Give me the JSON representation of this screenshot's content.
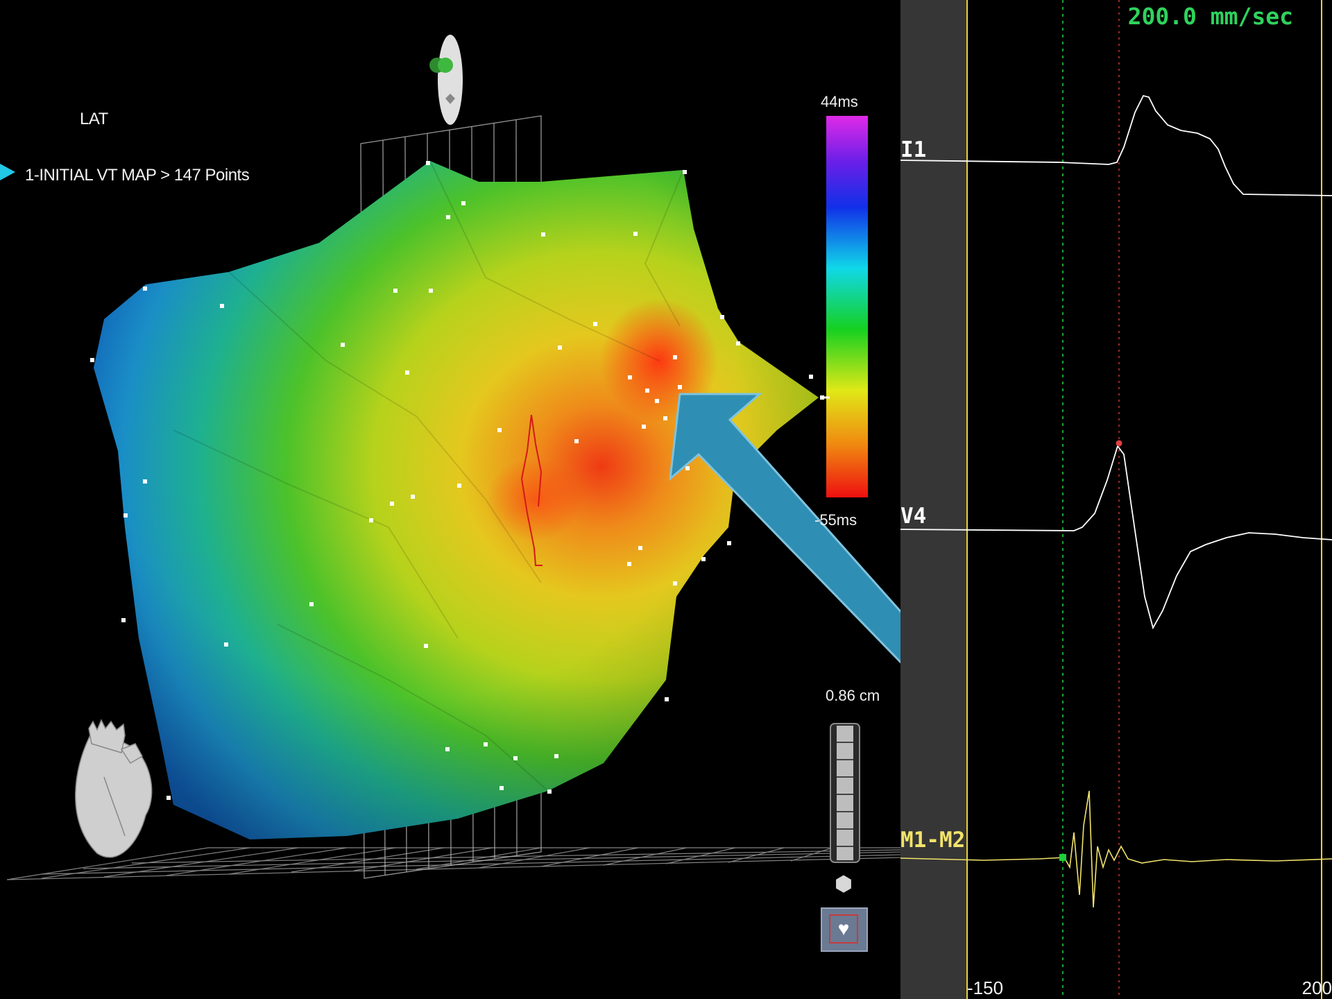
{
  "map": {
    "mode_label": "LAT",
    "map_label": "1-INITIAL VT MAP > 147 Points",
    "colorbar": {
      "max_label": "44ms",
      "min_label": "-55ms"
    },
    "scale_label": "0.86 cm",
    "colors": {
      "map_pointer": "#22c8e6",
      "annotation_arrow": "#2f8eb3"
    }
  },
  "ecg": {
    "speed_label": "200.0 mm/sec",
    "leads": [
      {
        "label": "I1",
        "color": "#ffffff"
      },
      {
        "label": "V4",
        "color": "#ffffff"
      },
      {
        "label": "M1-M2",
        "color": "#f2e36a"
      }
    ],
    "axis_left": "-150",
    "axis_right": "200",
    "colors": {
      "window_line": "#e6d23c",
      "reference_marker": "#1ecf3c",
      "lat_marker": "#e04040",
      "gutter": "#363636"
    }
  },
  "icons": {
    "orientation": "orientation-widget-icon",
    "heart_model": "heart-model-icon",
    "scale_slider": "zoom-scale-slider",
    "hexagon": "hexagon-icon",
    "heart_button": "heart-view-button"
  }
}
